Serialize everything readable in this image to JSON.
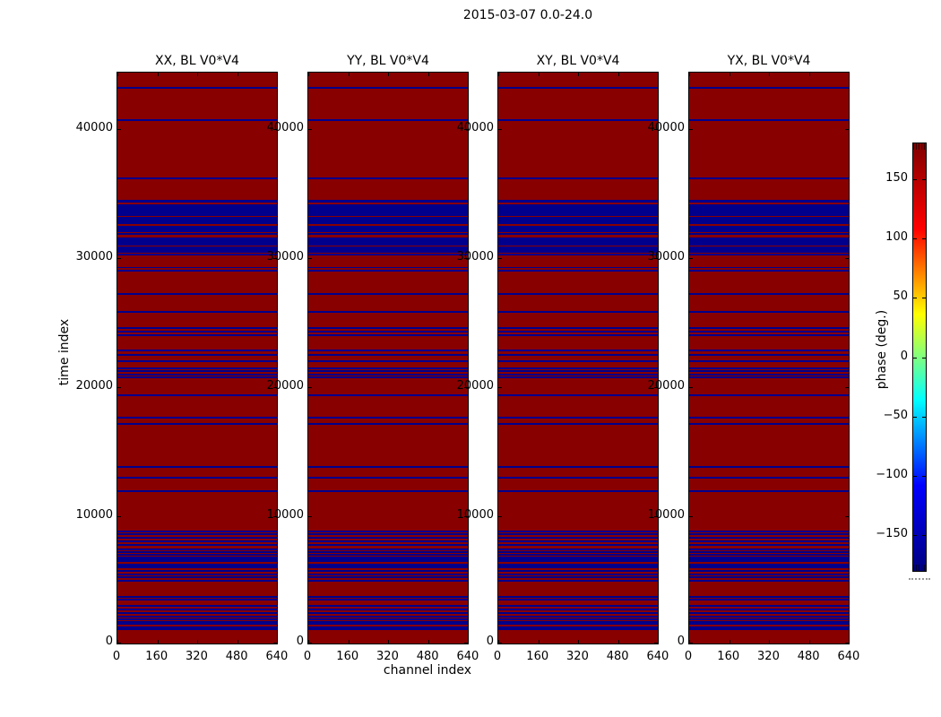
{
  "figure": {
    "suptitle": "2015-03-07 0.0-24.0",
    "background": "#ffffff"
  },
  "chart_data": {
    "type": "heatmap",
    "description": "Four waterfall plots of visibility phase (time index vs channel index) for baseline V0*V4, one per polarization product. Background phase is near +180 deg (dark red); horizontal flagged/wrapped rows near -180 deg (dark blue). All four panels share an identical row pattern.",
    "panels": [
      {
        "id": "xx",
        "title": "XX, BL V0*V4"
      },
      {
        "id": "yy",
        "title": "YY, BL V0*V4"
      },
      {
        "id": "xy",
        "title": "XY, BL V0*V4"
      },
      {
        "id": "yx",
        "title": "YX, BL V0*V4"
      }
    ],
    "xlabel": "channel index",
    "ylabel": "time index",
    "xlim": [
      0,
      644
    ],
    "ylim": [
      0,
      44400
    ],
    "xticks": {
      "values": [
        0,
        160,
        320,
        480,
        640
      ],
      "labels": [
        "0",
        "160",
        "320",
        "480",
        "640"
      ]
    },
    "yticks": {
      "values": [
        0,
        10000,
        20000,
        30000,
        40000
      ],
      "labels": [
        "0",
        "10000",
        "20000",
        "30000",
        "40000"
      ]
    },
    "background_phase_deg": 180,
    "stripe_phase_deg": -180,
    "colors": {
      "background": "#880000",
      "stripe": "#00008c"
    },
    "flagged_time_ranges": [
      [
        1150,
        1450
      ],
      [
        1600,
        1900
      ],
      [
        1940,
        2080
      ],
      [
        2150,
        2290
      ],
      [
        2430,
        2570
      ],
      [
        2710,
        2850
      ],
      [
        2990,
        3130
      ],
      [
        3470,
        3610
      ],
      [
        3680,
        3820
      ],
      [
        4930,
        5070
      ],
      [
        5210,
        5350
      ],
      [
        5400,
        5540
      ],
      [
        5680,
        5820
      ],
      [
        5960,
        6310
      ],
      [
        6450,
        6870
      ],
      [
        6940,
        7080
      ],
      [
        7150,
        7290
      ],
      [
        7360,
        7500
      ],
      [
        7710,
        7850
      ],
      [
        7990,
        8130
      ],
      [
        8260,
        8400
      ],
      [
        8540,
        8680
      ],
      [
        8750,
        8890
      ],
      [
        11870,
        12010
      ],
      [
        12920,
        13060
      ],
      [
        13750,
        13890
      ],
      [
        17080,
        17220
      ],
      [
        17570,
        17710
      ],
      [
        19300,
        19440
      ],
      [
        20690,
        20830
      ],
      [
        20900,
        21040
      ],
      [
        21180,
        21320
      ],
      [
        21390,
        21530
      ],
      [
        21940,
        22080
      ],
      [
        22430,
        22570
      ],
      [
        22780,
        22920
      ],
      [
        23960,
        24100
      ],
      [
        24230,
        24370
      ],
      [
        24510,
        24650
      ],
      [
        25760,
        25900
      ],
      [
        27150,
        27290
      ],
      [
        28980,
        29100
      ],
      [
        29230,
        29350
      ],
      [
        30200,
        30330
      ],
      [
        30450,
        30950
      ],
      [
        31020,
        31640
      ],
      [
        31840,
        31980
      ],
      [
        32050,
        32540
      ],
      [
        32680,
        33230
      ],
      [
        33300,
        34220
      ],
      [
        34350,
        34500
      ],
      [
        36100,
        36240
      ],
      [
        40620,
        40760
      ],
      [
        43150,
        43320
      ]
    ],
    "colorbar": {
      "label": "phase (deg.)",
      "range": [
        -180,
        180
      ],
      "colormap": "jet",
      "gradient_stops_bottom_to_top": [
        "#000080",
        "#0000ff",
        "#00ffff",
        "#ffff00",
        "#ff0000",
        "#800000"
      ],
      "ticks": {
        "values": [
          150,
          100,
          50,
          0,
          -50,
          -100,
          -150
        ],
        "labels": [
          "150",
          "100",
          "50",
          "0",
          "−50",
          "−100",
          "−150"
        ]
      }
    }
  }
}
